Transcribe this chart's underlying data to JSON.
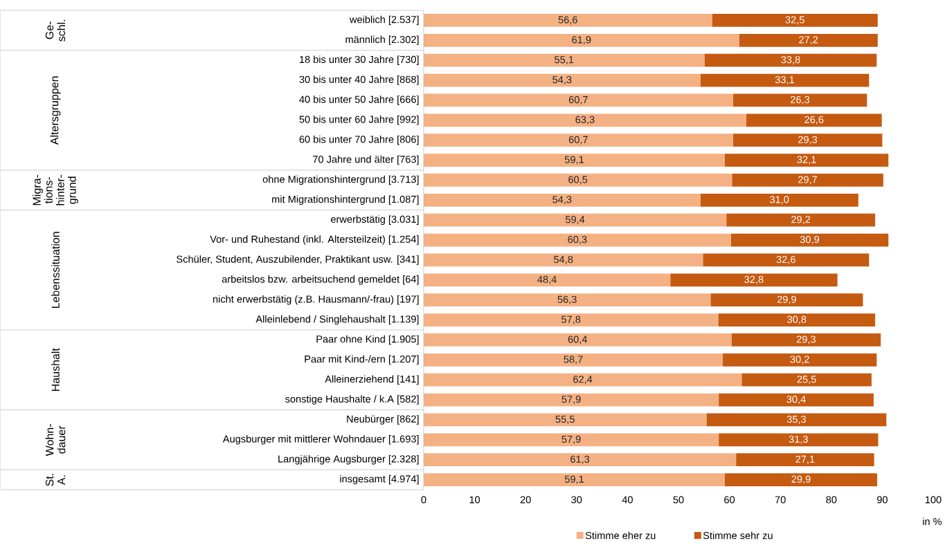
{
  "chart_data": {
    "type": "bar",
    "orientation": "horizontal",
    "stacked": true,
    "categories": [
      "weiblich [2.537]",
      "männlich [2.302]",
      "18 bis unter 30 Jahre [730]",
      "30 bis unter 40 Jahre [868]",
      "40 bis unter 50 Jahre [666]",
      "50 bis unter 60 Jahre [992]",
      "60 bis unter 70 Jahre [806]",
      "70 Jahre und älter [763]",
      "ohne Migrationshintergrund [3.713]",
      "mit Migrationshintergrund [1.087]",
      "erwerbstätig [3.031]",
      "Vor- und Ruhestand (inkl. Altersteilzeit) [1.254]",
      "Schüler, Student, Auszubilender, Praktikant usw. [341]",
      "arbeitslos bzw. arbeitsuchend gemeldet [64]",
      "nicht erwerbstätig (z.B. Hausmann/-frau) [197]",
      "Alleinlebend / Singlehaushalt [1.139]",
      "Paar ohne Kind [1.905]",
      "Paar mit Kind-/ern [1.207]",
      "Alleinerziehend [141]",
      "sonstige Haushalte / k.A [582]",
      "Neubürger [862]",
      "Augsburger mit mittlerer Wohndauer [1.693]",
      "Langjährige Augsburger [2.328]",
      "insgesamt [4.974]"
    ],
    "series": [
      {
        "name": "Stimme eher zu",
        "color": "#f4b183",
        "values": [
          56.6,
          61.9,
          55.1,
          54.3,
          60.7,
          63.3,
          60.7,
          59.1,
          60.5,
          54.3,
          59.4,
          60.3,
          54.8,
          48.4,
          56.3,
          57.8,
          60.4,
          58.7,
          62.4,
          57.9,
          55.5,
          57.9,
          61.3,
          59.1
        ],
        "value_labels": [
          "56,6",
          "61,9",
          "55,1",
          "54,3",
          "60,7",
          "63,3",
          "60,7",
          "59,1",
          "60,5",
          "54,3",
          "59,4",
          "60,3",
          "54,8",
          "48,4",
          "56,3",
          "57,8",
          "60,4",
          "58,7",
          "62,4",
          "57,9",
          "55,5",
          "57,9",
          "61,3",
          "59,1"
        ]
      },
      {
        "name": "Stimme sehr zu",
        "color": "#c55a11",
        "values": [
          32.5,
          27.2,
          33.8,
          33.1,
          26.3,
          26.6,
          29.3,
          32.1,
          29.7,
          31.0,
          29.2,
          30.9,
          32.6,
          32.8,
          29.9,
          30.8,
          29.3,
          30.2,
          25.5,
          30.4,
          35.3,
          31.3,
          27.1,
          29.9
        ],
        "value_labels": [
          "32,5",
          "27,2",
          "33,8",
          "33,1",
          "26,3",
          "26,6",
          "29,3",
          "32,1",
          "29,7",
          "31,0",
          "29,2",
          "30,9",
          "32,6",
          "32,8",
          "29,9",
          "30,8",
          "29,3",
          "30,2",
          "25,5",
          "30,4",
          "35,3",
          "31,3",
          "27,1",
          "29,9"
        ]
      }
    ],
    "xlim": [
      0,
      100
    ],
    "xticks": [
      0,
      10,
      20,
      30,
      40,
      50,
      60,
      70,
      80,
      90,
      100
    ],
    "xlabel": "in %",
    "legend": "bottom",
    "grid": false,
    "annotations": [
      "Ge- schl.",
      "Altersgruppen",
      "Migra- tions- hinter- grund",
      "Lebenssituation",
      "Haushalt",
      "Wohn- dauer",
      "St. A."
    ]
  }
}
